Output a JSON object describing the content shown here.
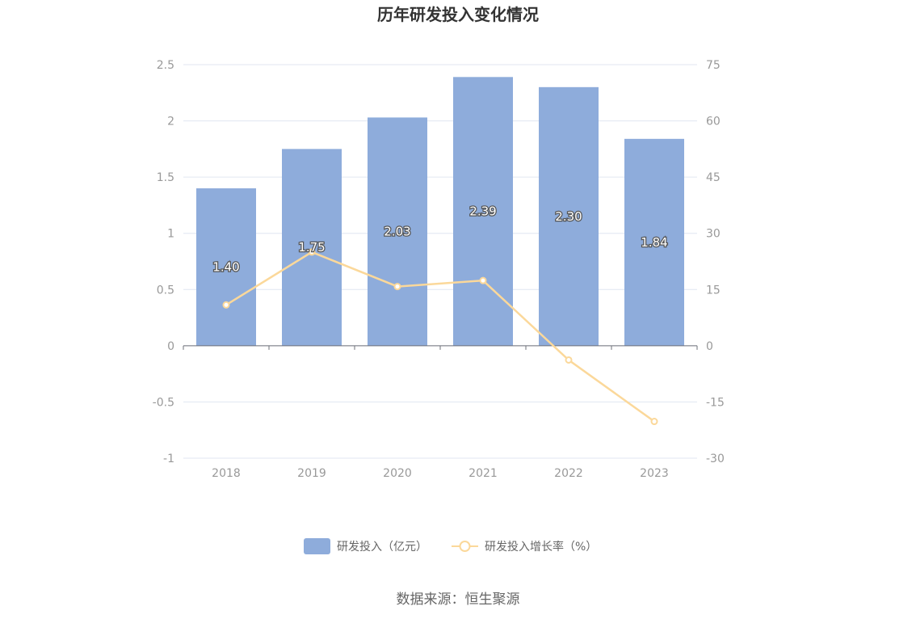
{
  "chart_data": {
    "type": "bar",
    "title": "历年研发投入变化情况",
    "categories": [
      "2018",
      "2019",
      "2020",
      "2021",
      "2022",
      "2023"
    ],
    "series": [
      {
        "name": "研发投入（亿元）",
        "type": "bar",
        "axis": "left",
        "values": [
          1.4,
          1.75,
          2.03,
          2.39,
          2.3,
          1.84
        ],
        "labels": [
          "1.40",
          "1.75",
          "2.03",
          "2.39",
          "2.30",
          "1.84"
        ],
        "color": "#8eacdb"
      },
      {
        "name": "研发投入增长率（%）",
        "type": "line",
        "axis": "right",
        "values": [
          10.9,
          25.0,
          15.8,
          17.4,
          -3.8,
          -20.2
        ],
        "color": "#fbd89a"
      }
    ],
    "y_left": {
      "min": -1,
      "max": 2.5,
      "ticks": [
        "2.5",
        "2",
        "1.5",
        "1",
        "0.5",
        "0",
        "-0.5",
        "-1"
      ]
    },
    "y_right": {
      "min": -30,
      "max": 75,
      "ticks": [
        "75",
        "60",
        "45",
        "30",
        "15",
        "0",
        "-15",
        "-30"
      ]
    },
    "grid": true,
    "legend_position": "bottom"
  },
  "source": "数据来源：恒生聚源"
}
